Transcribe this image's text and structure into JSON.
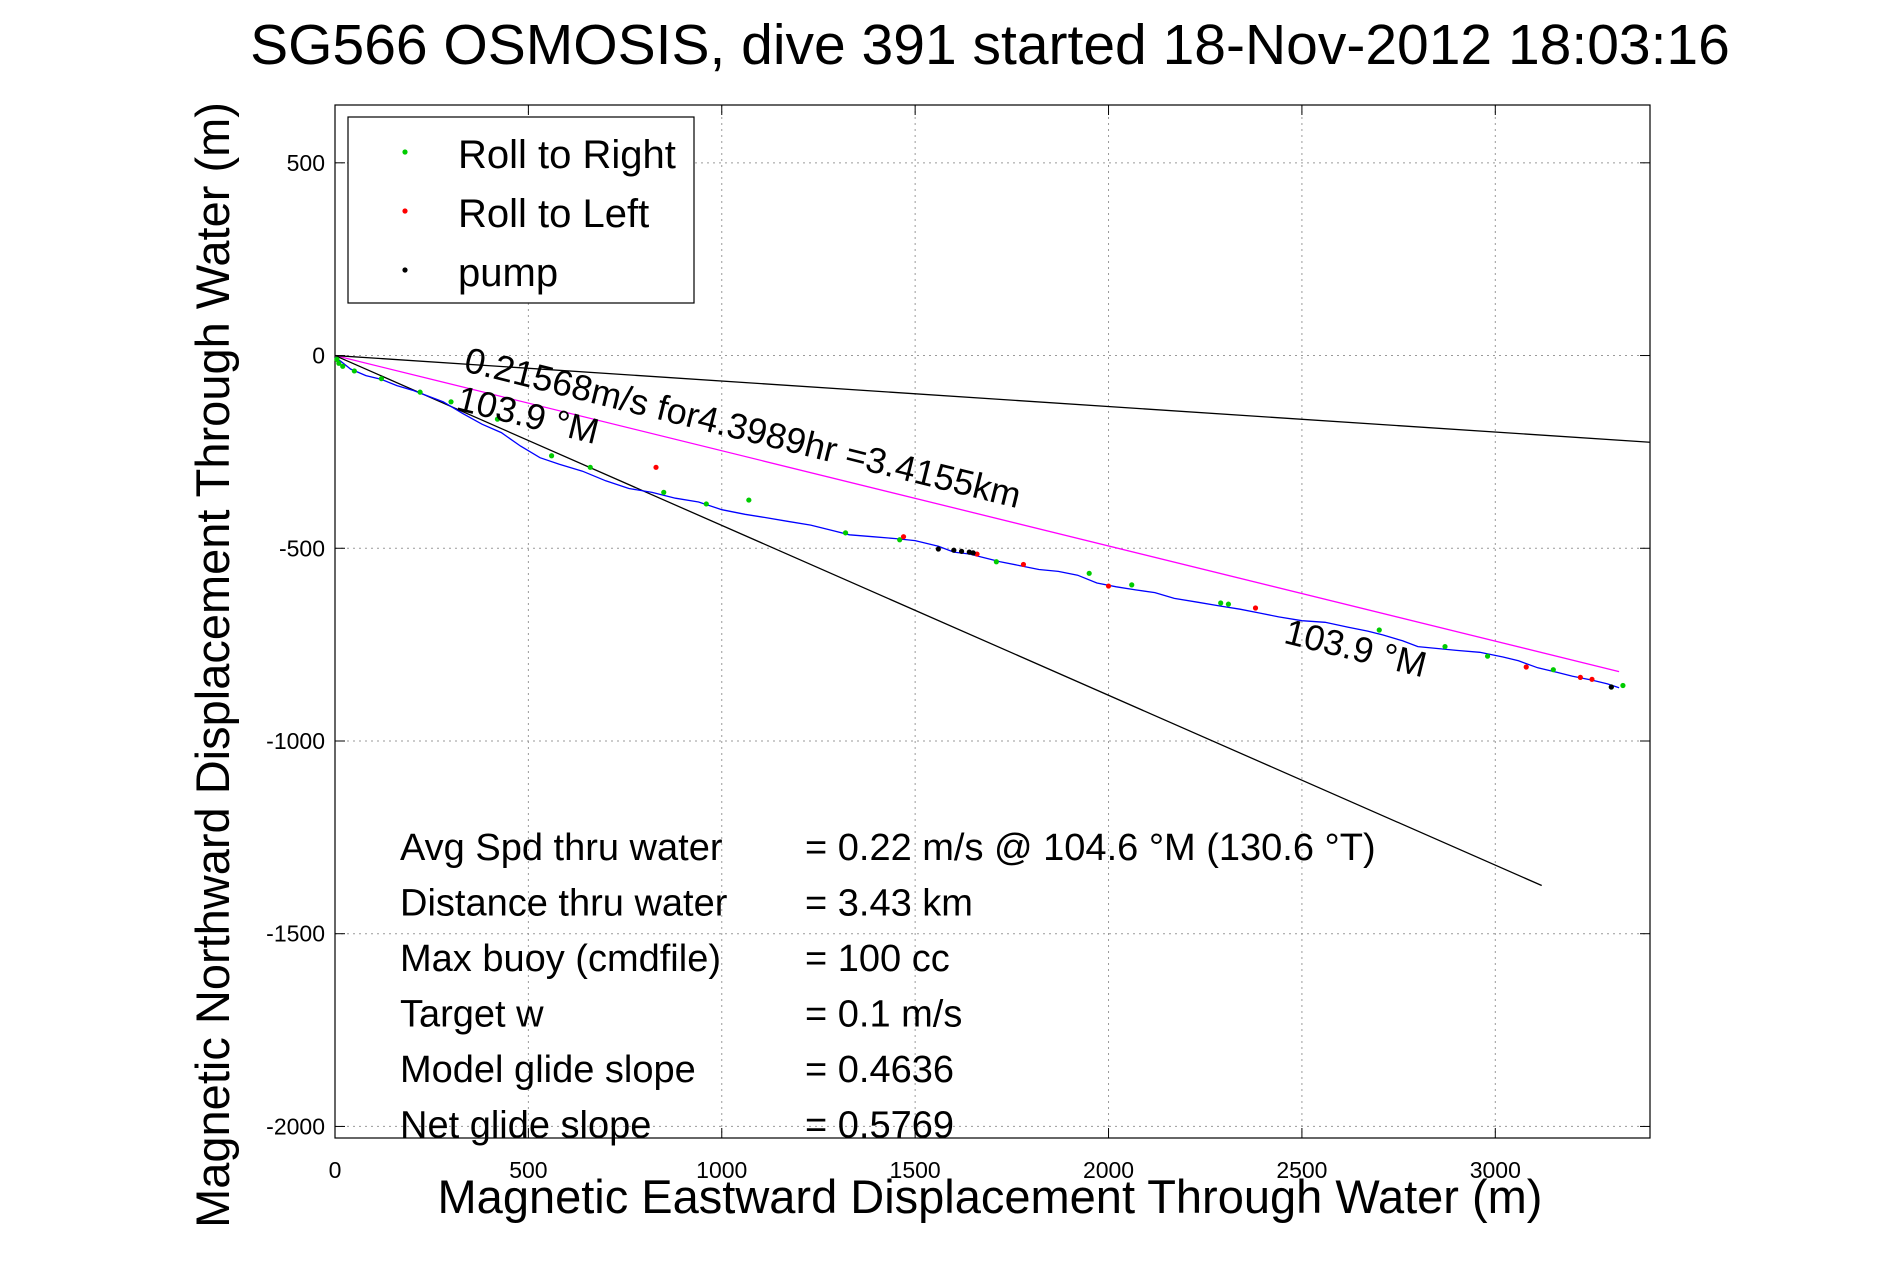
{
  "chart_data": {
    "type": "line",
    "title": "SG566 OSMOSIS, dive 391 started 18-Nov-2012 18:03:16",
    "xlabel": "Magnetic Eastward Displacement Through Water (m)",
    "ylabel": "Magnetic Northward Displacement Through Water (m)",
    "xlim": [
      0,
      3400
    ],
    "ylim": [
      -2030,
      650
    ],
    "xticks": [
      0,
      500,
      1000,
      1500,
      2000,
      2500,
      3000
    ],
    "xtick_labels": [
      "0",
      "500",
      "1000",
      "1500",
      "2000",
      "2500",
      "3000"
    ],
    "yticks": [
      500,
      0,
      -500,
      -1000,
      -1500,
      -2000
    ],
    "ytick_labels": [
      "500",
      "0",
      "-500",
      "-1000",
      "-1500",
      "-2000"
    ],
    "grid": true,
    "legend_position": "top-left",
    "legend": [
      {
        "label": "Roll to Right",
        "color": "#00cc00"
      },
      {
        "label": "Roll to Left",
        "color": "#ff0000"
      },
      {
        "label": "pump",
        "color": "#000000"
      }
    ],
    "track": {
      "color": "#0000ff",
      "x": [
        0,
        15,
        40,
        80,
        120,
        160,
        200,
        240,
        280,
        330,
        380,
        430,
        480,
        530,
        580,
        640,
        700,
        760,
        820,
        880,
        940,
        1000,
        1060,
        1110,
        1170,
        1230,
        1290,
        1330,
        1390,
        1450,
        1500,
        1560,
        1600,
        1640,
        1680,
        1720,
        1770,
        1820,
        1870,
        1920,
        1970,
        2020,
        2070,
        2120,
        2170,
        2230,
        2290,
        2340,
        2390,
        2440,
        2500,
        2560,
        2620,
        2670,
        2710,
        2760,
        2800,
        2850,
        2900,
        2960,
        3020,
        3060,
        3110,
        3160,
        3200,
        3250,
        3290,
        3320
      ],
      "y": [
        -5,
        -15,
        -35,
        -52,
        -62,
        -78,
        -90,
        -105,
        -120,
        -150,
        -178,
        -200,
        -235,
        -265,
        -282,
        -300,
        -325,
        -345,
        -355,
        -370,
        -380,
        -400,
        -412,
        -420,
        -430,
        -440,
        -455,
        -465,
        -470,
        -475,
        -480,
        -495,
        -510,
        -515,
        -525,
        -535,
        -545,
        -555,
        -560,
        -570,
        -590,
        -600,
        -608,
        -615,
        -630,
        -640,
        -650,
        -658,
        -668,
        -678,
        -688,
        -692,
        -705,
        -715,
        -725,
        -740,
        -755,
        -760,
        -765,
        -770,
        -782,
        -792,
        -810,
        -822,
        -832,
        -842,
        -852,
        -862
      ]
    },
    "roll_right_points": {
      "color": "#00cc00",
      "x": [
        5,
        10,
        20,
        50,
        120,
        220,
        300,
        420,
        560,
        660,
        850,
        960,
        1070,
        1320,
        1460,
        1710,
        1950,
        2060,
        2290,
        2310,
        2700,
        2870,
        2980,
        3150,
        3300,
        3330
      ],
      "y": [
        -10,
        -20,
        -28,
        -40,
        -60,
        -95,
        -120,
        -165,
        -260,
        -290,
        -355,
        -385,
        -375,
        -460,
        -478,
        -535,
        -565,
        -595,
        -642,
        -645,
        -712,
        -755,
        -780,
        -815,
        -860,
        -856
      ]
    },
    "roll_left_points": {
      "color": "#ff0000",
      "x": [
        830,
        1470,
        1660,
        1780,
        2000,
        2380,
        3080,
        3220,
        3250
      ],
      "y": [
        -290,
        -470,
        -515,
        -542,
        -598,
        -655,
        -808,
        -835,
        -840
      ]
    },
    "pump_points": {
      "color": "#000000",
      "x": [
        1560,
        1600,
        1620,
        1640,
        1650,
        3300
      ],
      "y": [
        -502,
        -505,
        -508,
        -510,
        -512,
        -860
      ]
    },
    "reference_lines": [
      {
        "name": "",
        "color": "#ff00ff",
        "x": [
          0,
          3320
        ],
        "y": [
          0,
          -820
        ]
      },
      {
        "name": "",
        "color": "#000000",
        "x": [
          0,
          3400
        ],
        "y": [
          0,
          -225
        ]
      },
      {
        "name": "",
        "color": "#000000",
        "x": [
          0,
          3120
        ],
        "y": [
          0,
          -1375
        ]
      }
    ],
    "annotations": [
      {
        "text": "0.21568m/s for4.3989hr =3.4155km",
        "x": 330,
        "y": -40,
        "angle": 13.9
      },
      {
        "text": "103.9 °M",
        "x": 310,
        "y": -140,
        "angle": 13.9
      },
      {
        "text": "103.9 °M",
        "x": 2450,
        "y": -745,
        "angle": 13.9
      }
    ],
    "stats": [
      {
        "label": "Avg Spd thru water",
        "value": "=  0.22 m/s @ 104.6 °M (130.6 °T)"
      },
      {
        "label": "Distance thru water",
        "value": "=  3.43 km"
      },
      {
        "label": "Max buoy (cmdfile)",
        "value": "= 100 cc"
      },
      {
        "label": "Target w",
        "value": "= 0.1 m/s"
      },
      {
        "label": "Model glide slope",
        "value": "= 0.4636"
      },
      {
        "label": "Net glide slope",
        "value": "= 0.5769"
      }
    ]
  }
}
